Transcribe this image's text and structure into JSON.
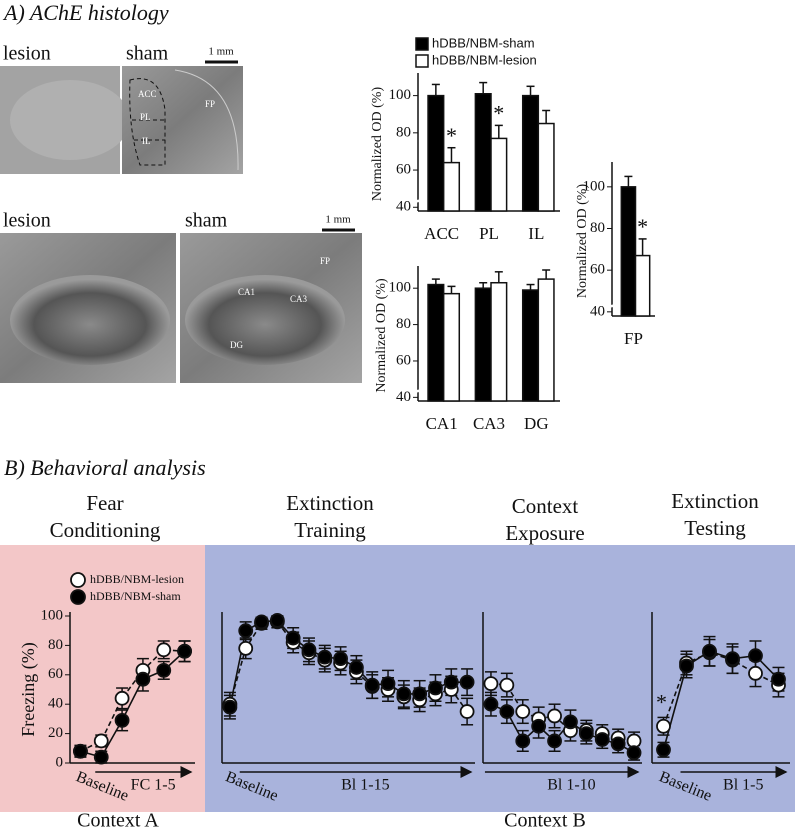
{
  "panel_a": {
    "title": "A) AChE histology",
    "histology_top": {
      "lesion_label": "lesion",
      "sham_label": "sham",
      "scale": "1 mm",
      "regions": [
        "ACC",
        "PL",
        "IL",
        "FP"
      ]
    },
    "histology_bottom": {
      "lesion_label": "lesion",
      "sham_label": "sham",
      "scale": "1 mm",
      "regions": [
        "CA1",
        "CA3",
        "FP",
        "DG"
      ]
    }
  },
  "panel_b": {
    "title": "B) Behavioral analysis",
    "contexts": [
      "Context A",
      "Context B"
    ]
  },
  "chart_data": [
    {
      "type": "bar",
      "ylabel": "Normalized OD (%)",
      "categories": [
        "ACC",
        "PL",
        "IL"
      ],
      "ylim": [
        38,
        110
      ],
      "yticks": [
        40,
        60,
        80,
        100
      ],
      "significance": [
        "*",
        "*",
        null
      ],
      "series": [
        {
          "name": "hDBB/NBM-sham",
          "color": "#000000",
          "values": [
            100,
            101,
            100
          ],
          "errors": [
            6,
            6,
            5
          ]
        },
        {
          "name": "hDBB/NBM-lesion",
          "color": "#ffffff",
          "values": [
            64,
            77,
            85
          ],
          "errors": [
            8,
            7,
            7
          ]
        }
      ]
    },
    {
      "type": "bar",
      "ylabel": "Normalized OD (%)",
      "categories": [
        "CA1",
        "CA3",
        "DG"
      ],
      "ylim": [
        38,
        110
      ],
      "yticks": [
        40,
        60,
        80,
        100
      ],
      "series": [
        {
          "color": "#000000",
          "values": [
            102,
            100,
            99
          ],
          "errors": [
            3,
            3,
            3
          ]
        },
        {
          "color": "#ffffff",
          "values": [
            97,
            103,
            105
          ],
          "errors": [
            4,
            6,
            5
          ]
        }
      ]
    },
    {
      "type": "bar",
      "ylabel": "Normalized OD (%)",
      "categories": [
        "FP"
      ],
      "ylim": [
        38,
        110
      ],
      "yticks": [
        40,
        60,
        80,
        100
      ],
      "significance": [
        "*"
      ],
      "series": [
        {
          "color": "#000000",
          "values": [
            100
          ],
          "errors": [
            5
          ]
        },
        {
          "color": "#ffffff",
          "values": [
            67
          ],
          "errors": [
            8
          ]
        }
      ]
    },
    {
      "type": "line",
      "title": "Fear Conditioning",
      "ylabel": "Freezing (%)",
      "ylim": [
        0,
        100
      ],
      "yticks": [
        0,
        20,
        40,
        60,
        80,
        100
      ],
      "categories": [
        "Baseline",
        null,
        null,
        null,
        null,
        null
      ],
      "x_arrow_label": "FC 1-5",
      "series": [
        {
          "name": "hDBB/NBM-lesion",
          "color": "#ffffff",
          "line_style": "dashed",
          "values": [
            8,
            15,
            44,
            63,
            77,
            76
          ],
          "errors": [
            4,
            4,
            7,
            8,
            6,
            7
          ]
        },
        {
          "name": "hDBB/NBM-sham",
          "color": "#000000",
          "line_style": "solid",
          "values": [
            8,
            4,
            29,
            57,
            63,
            76
          ],
          "errors": [
            3,
            4,
            7,
            8,
            6,
            7
          ]
        }
      ]
    },
    {
      "type": "line",
      "title": "Extinction Training",
      "ylim": [
        0,
        100
      ],
      "categories": [
        "Baseline",
        null,
        null,
        null,
        null,
        null,
        null,
        null,
        null,
        null,
        null,
        null,
        null,
        null,
        null,
        null
      ],
      "x_arrow_label": "Bl 1-15",
      "series": [
        {
          "color": "#ffffff",
          "line_style": "dashed",
          "values": [
            40,
            78,
            95,
            96,
            82,
            75,
            70,
            68,
            62,
            52,
            50,
            45,
            43,
            47,
            50,
            35
          ],
          "errors": [
            8,
            7,
            4,
            4,
            7,
            8,
            8,
            8,
            8,
            8,
            8,
            8,
            8,
            8,
            9,
            9
          ]
        },
        {
          "color": "#000000",
          "line_style": "solid",
          "values": [
            38,
            90,
            96,
            97,
            85,
            77,
            72,
            71,
            65,
            53,
            54,
            47,
            47,
            51,
            55,
            55
          ],
          "errors": [
            8,
            6,
            3,
            3,
            7,
            8,
            8,
            8,
            8,
            9,
            9,
            9,
            9,
            9,
            9,
            9
          ]
        }
      ]
    },
    {
      "type": "line",
      "title": "Context Exposure",
      "ylim": [
        0,
        100
      ],
      "categories": [
        null,
        null,
        null,
        null,
        null,
        null,
        null,
        null,
        null,
        null
      ],
      "x_arrow_label": "Bl 1-10",
      "series": [
        {
          "color": "#ffffff",
          "line_style": "dashed",
          "values": [
            54,
            53,
            35,
            30,
            32,
            22,
            22,
            20,
            17,
            15
          ],
          "errors": [
            8,
            8,
            8,
            8,
            8,
            7,
            7,
            6,
            6,
            6
          ]
        },
        {
          "color": "#000000",
          "line_style": "solid",
          "values": [
            40,
            35,
            15,
            25,
            15,
            28,
            20,
            16,
            13,
            7
          ],
          "errors": [
            8,
            8,
            7,
            8,
            7,
            8,
            7,
            6,
            6,
            5
          ]
        }
      ]
    },
    {
      "type": "line",
      "title": "Extinction Testing",
      "ylim": [
        0,
        100
      ],
      "categories": [
        "Baseline",
        null,
        null,
        null,
        null,
        null
      ],
      "x_arrow_label": "Bl 1-5",
      "significance": [
        "*",
        null,
        null,
        null,
        null,
        null
      ],
      "series": [
        {
          "color": "#ffffff",
          "line_style": "dashed",
          "values": [
            25,
            68,
            75,
            70,
            61,
            53
          ],
          "errors": [
            6,
            8,
            9,
            9,
            9,
            8
          ]
        },
        {
          "color": "#000000",
          "line_style": "solid",
          "values": [
            9,
            66,
            76,
            71,
            73,
            57
          ],
          "errors": [
            5,
            8,
            10,
            10,
            10,
            8
          ]
        }
      ]
    }
  ]
}
